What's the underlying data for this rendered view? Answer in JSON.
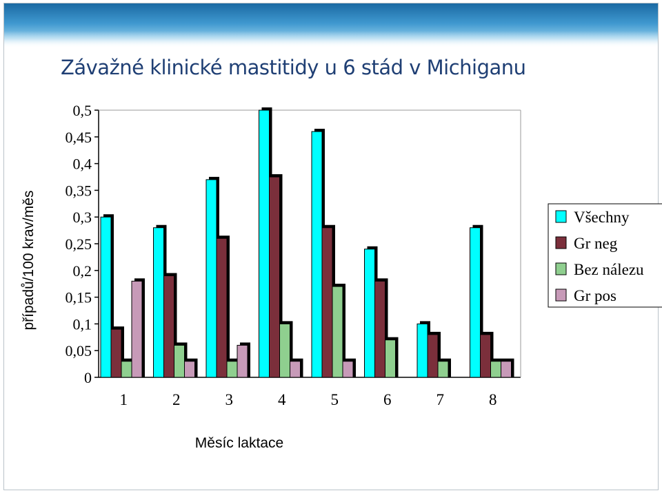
{
  "chart_data": {
    "type": "bar",
    "title": "Závažné klinické mastitidy u 6 stád v Michiganu",
    "xlabel": "Měsíc laktace",
    "ylabel": "případů/100 krav/měs",
    "categories": [
      "1",
      "2",
      "3",
      "4",
      "5",
      "6",
      "7",
      "8"
    ],
    "ylim": [
      0,
      0.5
    ],
    "yticks": [
      "0",
      "0,05",
      "0,1",
      "0,15",
      "0,2",
      "0,25",
      "0,3",
      "0,35",
      "0,4",
      "0,45",
      "0,5"
    ],
    "grid": false,
    "legend_position": "right",
    "series": [
      {
        "name": "Všechny",
        "color": "#00ffff",
        "values": [
          0.3,
          0.28,
          0.37,
          0.5,
          0.46,
          0.24,
          0.1,
          0.28
        ]
      },
      {
        "name": "Gr neg",
        "color": "#7b2f3b",
        "values": [
          0.09,
          0.19,
          0.26,
          0.375,
          0.28,
          0.18,
          0.08,
          0.08
        ]
      },
      {
        "name": "Bez nálezu",
        "color": "#8fcf8f",
        "values": [
          0.03,
          0.06,
          0.03,
          0.1,
          0.17,
          0.07,
          0.03,
          0.03
        ]
      },
      {
        "name": "Gr pos",
        "color": "#c79ab8",
        "values": [
          0.18,
          0.03,
          0.06,
          0.03,
          0.03,
          0,
          0,
          0.03
        ]
      }
    ]
  }
}
